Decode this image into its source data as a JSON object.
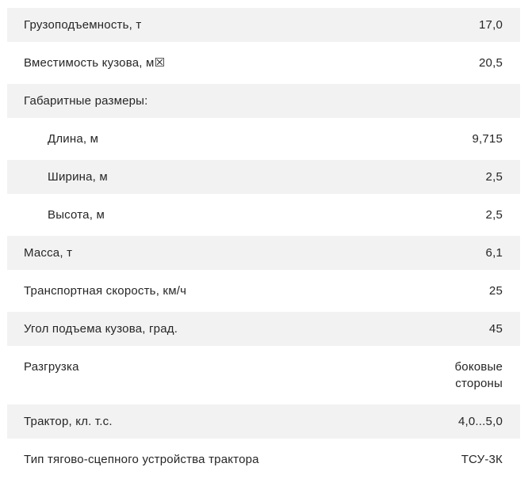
{
  "colors": {
    "row_stripe": "#f2f2f2",
    "text": "#262626",
    "background": "#ffffff"
  },
  "table": {
    "rows": [
      {
        "label": "Грузоподъемность, т",
        "value": "17,0",
        "indent": false,
        "striped": true
      },
      {
        "label": "Вместимость кузова, м☒",
        "value": "20,5",
        "indent": false,
        "striped": false
      },
      {
        "label": "Габаритные размеры:",
        "value": "",
        "indent": false,
        "striped": true
      },
      {
        "label": "Длина, м",
        "value": "9,715",
        "indent": true,
        "striped": false
      },
      {
        "label": "Ширина, м",
        "value": "2,5",
        "indent": true,
        "striped": true
      },
      {
        "label": "Высота, м",
        "value": "2,5",
        "indent": true,
        "striped": false
      },
      {
        "label": "Масса, т",
        "value": "6,1",
        "indent": false,
        "striped": true
      },
      {
        "label": "Транспортная скорость, км/ч",
        "value": "25",
        "indent": false,
        "striped": false
      },
      {
        "label": "Угол подъема кузова, град.",
        "value": "45",
        "indent": false,
        "striped": true
      },
      {
        "label": "Разгрузка",
        "value": "боковые\nстороны",
        "indent": false,
        "striped": false
      },
      {
        "label": "Трактор, кл. т.с.",
        "value": "4,0...5,0",
        "indent": false,
        "striped": true
      },
      {
        "label": "Тип тягово-сцепного устройства трактора",
        "value": "ТСУ-3К",
        "indent": false,
        "striped": false
      }
    ]
  }
}
